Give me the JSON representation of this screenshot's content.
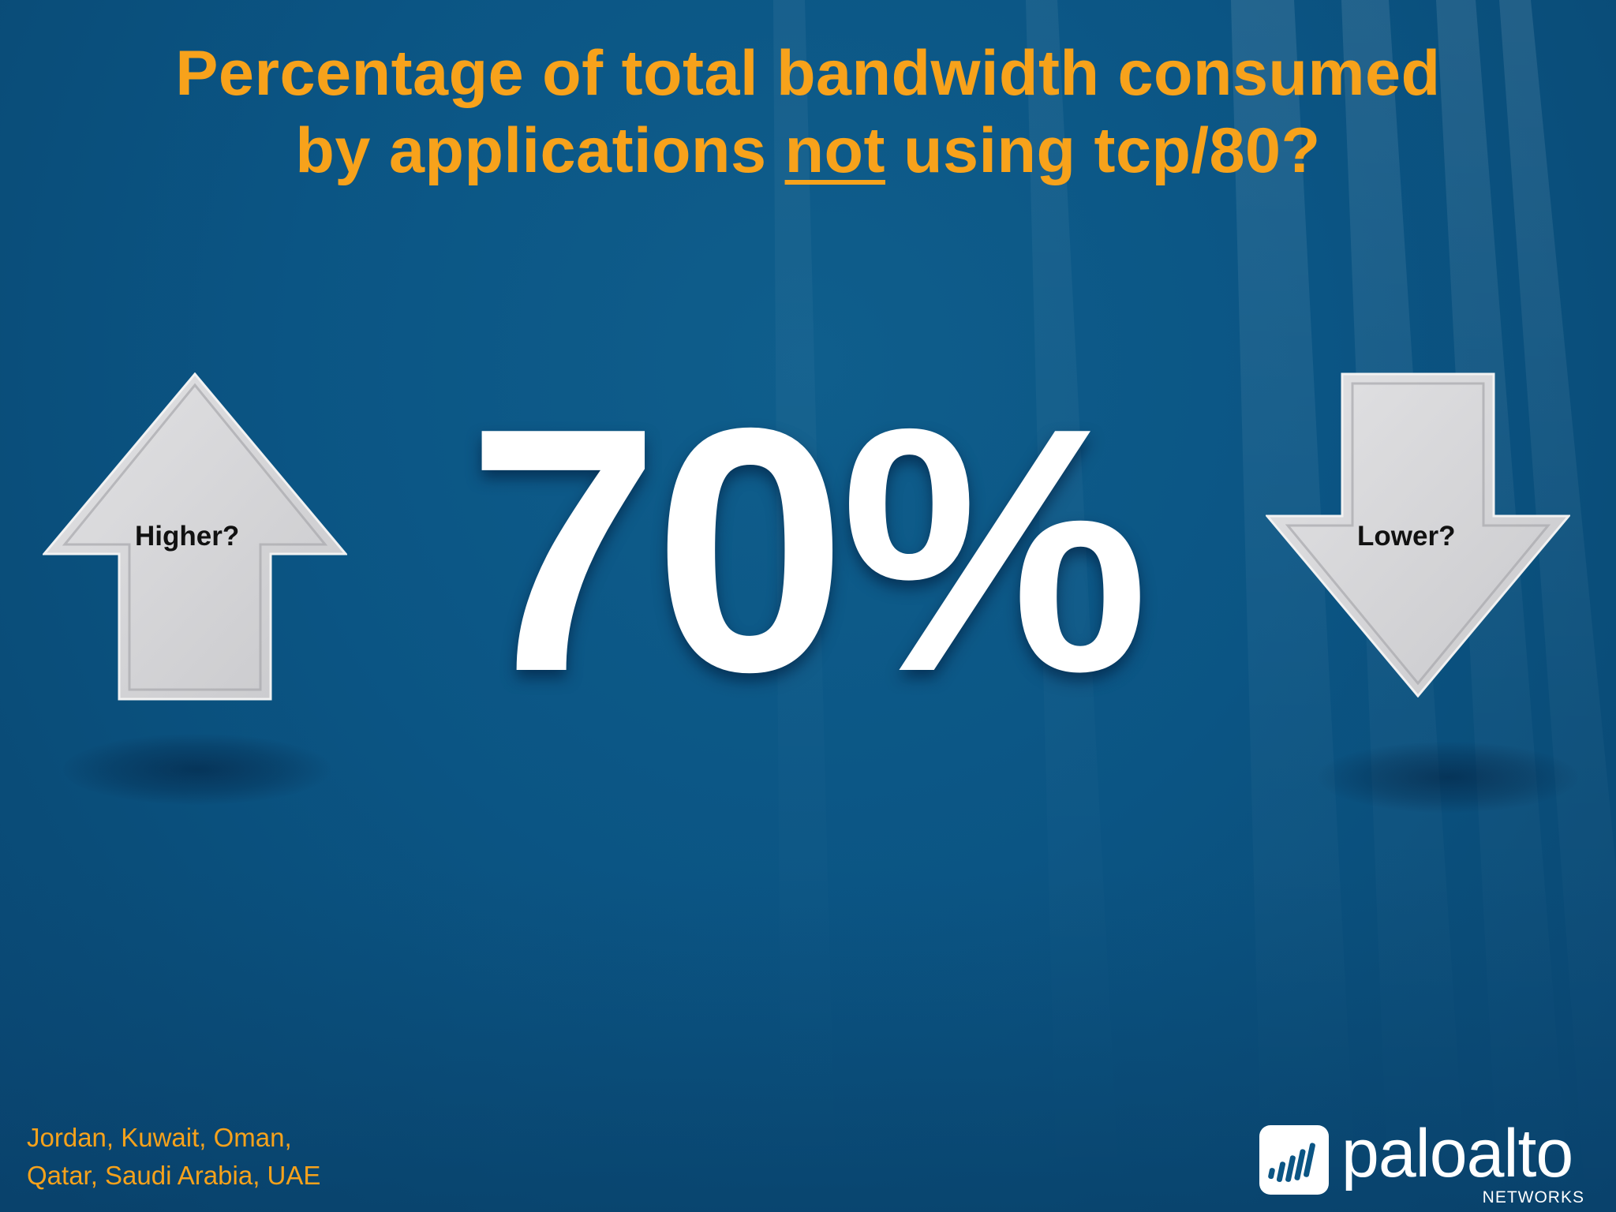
{
  "slide": {
    "title_line1": "Percentage of total bandwidth consumed",
    "title_line2_before": "by applications ",
    "title_line2_underlined": "not",
    "title_line2_after": " using tcp/80?",
    "big_number": "70%",
    "left_arrow": {
      "label": "Higher?",
      "icon": "up-arrow-icon"
    },
    "right_arrow": {
      "label": "Lower?",
      "icon": "down-arrow-icon"
    },
    "footnote_line1": "Jordan, Kuwait, Oman,",
    "footnote_line2": "Qatar, Saudi Arabia, UAE"
  },
  "logo": {
    "word": "paloalto",
    "sub": "NETWORKS",
    "icon": "paloalto-logo-icon"
  },
  "colors": {
    "background": "#0b5584",
    "title": "#f7a21b",
    "number": "#ffffff",
    "arrow_fill": "#d6d6d8",
    "footnote": "#f7a21b"
  }
}
